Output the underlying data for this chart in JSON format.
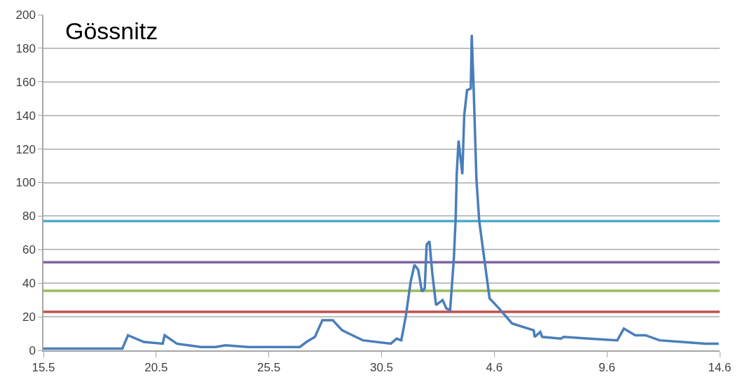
{
  "chart_data": {
    "type": "line",
    "title": "Gössnitz",
    "x": [
      "--05-15T00:00",
      "--05-18T12:00",
      "--05-18T18:00",
      "--05-19T11:00",
      "--05-20T07:00",
      "--05-20T09:00",
      "--05-20T22:00",
      "--05-22T00:00",
      "--05-22T15:00",
      "--05-23T02:00",
      "--05-24T02:00",
      "--05-26T09:00",
      "--05-26T16:00",
      "--05-27T01:00",
      "--05-27T09:00",
      "--05-27T20:00",
      "--05-28T06:00",
      "--05-29T04:00",
      "--05-30T10:00",
      "--05-30T16:00",
      "--05-30T21:00",
      "--05-31T02:00",
      "--05-31T07:00",
      "--05-31T11:00",
      "--05-31T15:00",
      "--05-31T19:00",
      "--05-31T22:00",
      "--06-01T00:00",
      "--06-01T03:00",
      "--06-01T06:00",
      "--06-01T10:00",
      "--06-01T17:00",
      "--06-01T21:00",
      "--06-02T01:00",
      "--06-02T05:00",
      "--06-02T07:00",
      "--06-02T08:00",
      "--06-02T10:00",
      "--06-02T14:00",
      "--06-02T16:00",
      "--06-02T19:00",
      "--06-02T23:00",
      "--06-03T00:00",
      "--06-03T02:00",
      "--06-03T05:00",
      "--06-03T08:00",
      "--06-03T14:00",
      "--06-03T19:00",
      "--06-04T05:00",
      "--06-04T19:00",
      "--06-05T18:00",
      "--06-05T19:00",
      "--06-06T01:00",
      "--06-06T03:00",
      "--06-06T23:00",
      "--06-07T02:00",
      "--06-08T05:00",
      "--06-09T11:00",
      "--06-09T18:00",
      "--06-10T06:00",
      "--06-10T17:00",
      "--06-11T08:00",
      "--06-12T08:00",
      "--06-13T09:00",
      "--06-13T23:00"
    ],
    "series": [
      {
        "color": "#4a7ebb",
        "values": [
          1,
          1,
          9,
          5,
          4,
          9,
          4,
          2,
          2,
          3,
          2,
          2,
          5,
          8,
          18,
          18,
          12,
          6,
          4,
          7,
          6,
          21,
          41,
          51,
          48,
          35,
          37,
          63,
          65,
          46,
          27,
          30,
          25,
          24,
          55,
          80,
          105,
          125,
          105,
          140,
          155,
          156,
          188,
          157,
          102,
          77,
          52,
          31,
          25,
          16,
          12,
          8,
          11,
          8,
          7,
          8,
          7,
          6,
          13,
          9,
          9,
          6,
          5,
          4,
          4
        ]
      }
    ],
    "xlim": [
      "--05-15",
      "--06-14"
    ],
    "xticks": [
      {
        "value": "--05-15",
        "label": "15.5"
      },
      {
        "value": "--05-20",
        "label": "20.5"
      },
      {
        "value": "--05-25",
        "label": "25.5"
      },
      {
        "value": "--05-30",
        "label": "30.5"
      },
      {
        "value": "--06-04",
        "label": "4.6"
      },
      {
        "value": "--06-09",
        "label": "9.6"
      },
      {
        "value": "--06-14",
        "label": "14.6"
      }
    ],
    "ylim": [
      0,
      200
    ],
    "yticks": [
      0,
      20,
      40,
      60,
      80,
      100,
      120,
      140,
      160,
      180,
      200
    ],
    "ref_lines": [
      {
        "axis": "y",
        "value": 77,
        "color": "#4bacc6"
      },
      {
        "axis": "y",
        "value": 52.5,
        "color": "#8064a2"
      },
      {
        "axis": "y",
        "value": 35.5,
        "color": "#9bbb59"
      },
      {
        "axis": "y",
        "value": 23,
        "color": "#c0504d"
      }
    ],
    "grid": "y",
    "marker": "none",
    "line_style": "solid"
  }
}
